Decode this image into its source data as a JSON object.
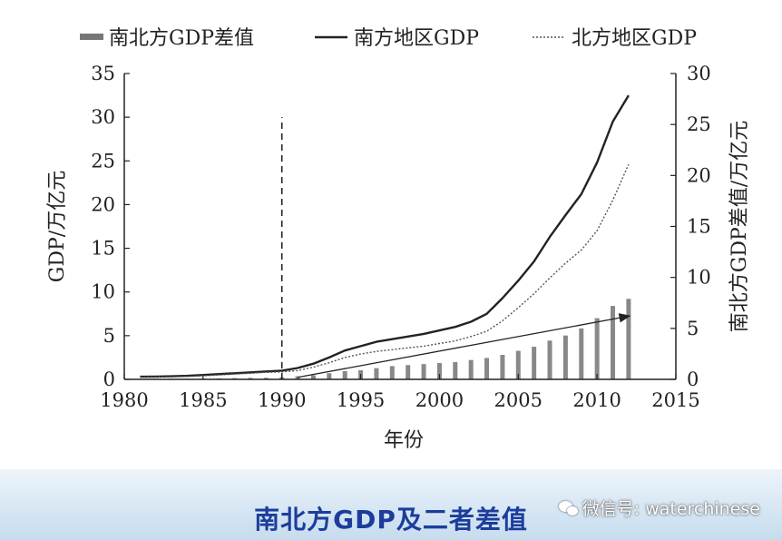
{
  "chart_data": {
    "type": "bar+line",
    "title": "",
    "xlabel": "年份",
    "ylabel_left": "GDP/万亿元",
    "ylabel_right": "南北方GDP差值/万亿元",
    "xlim": [
      1980,
      2015
    ],
    "ylim_left": [
      0,
      35
    ],
    "ylim_right": [
      0,
      30
    ],
    "x_ticks": [
      1980,
      1985,
      1990,
      1995,
      2000,
      2005,
      2010,
      2015
    ],
    "y_ticks_left": [
      0,
      5,
      10,
      15,
      20,
      25,
      30,
      35
    ],
    "y_ticks_right": [
      0,
      5,
      10,
      15,
      20,
      25,
      30
    ],
    "legend": {
      "placement": "top",
      "entries": [
        "南北方GDP差值",
        "南方地区GDP",
        "北方地区GDP"
      ]
    },
    "series": [
      {
        "name": "南北方GDP差值",
        "kind": "bar",
        "axis": "right",
        "color": "#888888",
        "x": [
          1981,
          1982,
          1983,
          1984,
          1985,
          1986,
          1987,
          1988,
          1989,
          1990,
          1991,
          1992,
          1993,
          1994,
          1995,
          1996,
          1997,
          1998,
          1999,
          2000,
          2001,
          2002,
          2003,
          2004,
          2005,
          2006,
          2007,
          2008,
          2009,
          2010,
          2011,
          2012
        ],
        "values": [
          0.05,
          0.05,
          0.06,
          0.06,
          0.08,
          0.1,
          0.12,
          0.15,
          0.15,
          0.2,
          0.3,
          0.4,
          0.6,
          0.8,
          0.9,
          1.1,
          1.3,
          1.4,
          1.5,
          1.6,
          1.7,
          1.9,
          2.1,
          2.4,
          2.8,
          3.2,
          3.8,
          4.3,
          5.0,
          6.0,
          7.2,
          7.9
        ]
      },
      {
        "name": "南方地区GDP",
        "kind": "line",
        "axis": "left",
        "style": "solid",
        "color": "#222222",
        "x": [
          1981,
          1982,
          1983,
          1984,
          1985,
          1986,
          1987,
          1988,
          1989,
          1990,
          1991,
          1992,
          1993,
          1994,
          1995,
          1996,
          1997,
          1998,
          1999,
          2000,
          2001,
          2002,
          2003,
          2004,
          2005,
          2006,
          2007,
          2008,
          2009,
          2010,
          2011,
          2012
        ],
        "values": [
          0.3,
          0.32,
          0.35,
          0.4,
          0.5,
          0.6,
          0.7,
          0.8,
          0.9,
          1.0,
          1.3,
          1.8,
          2.5,
          3.3,
          3.8,
          4.3,
          4.6,
          4.9,
          5.2,
          5.6,
          6.0,
          6.6,
          7.5,
          9.3,
          11.3,
          13.5,
          16.3,
          18.8,
          21.2,
          24.8,
          29.5,
          32.5
        ]
      },
      {
        "name": "北方地区GDP",
        "kind": "line",
        "axis": "left",
        "style": "dotted",
        "color": "#555555",
        "x": [
          1981,
          1982,
          1983,
          1984,
          1985,
          1986,
          1987,
          1988,
          1989,
          1990,
          1991,
          1992,
          1993,
          1994,
          1995,
          1996,
          1997,
          1998,
          1999,
          2000,
          2001,
          2002,
          2003,
          2004,
          2005,
          2006,
          2007,
          2008,
          2009,
          2010,
          2011,
          2012
        ],
        "values": [
          0.25,
          0.27,
          0.29,
          0.33,
          0.4,
          0.5,
          0.6,
          0.7,
          0.8,
          0.85,
          1.0,
          1.4,
          1.9,
          2.5,
          2.9,
          3.2,
          3.4,
          3.6,
          3.8,
          4.1,
          4.4,
          4.9,
          5.5,
          6.7,
          8.2,
          9.8,
          11.6,
          13.3,
          14.8,
          17.0,
          20.5,
          24.6
        ]
      }
    ],
    "annotations": [
      {
        "type": "vertical-dashed-line",
        "x": 1990,
        "y_from": 0,
        "y_to": 30,
        "axis": "left"
      },
      {
        "type": "trend-arrow",
        "from": [
          1991,
          0.2
        ],
        "to": [
          2012,
          6.2
        ],
        "axis": "right"
      }
    ]
  },
  "footer": {
    "caption": "南北方GDP及二者差值",
    "watermark": "微信号: waterchinese",
    "watermark_icon": "wechat-icon"
  }
}
